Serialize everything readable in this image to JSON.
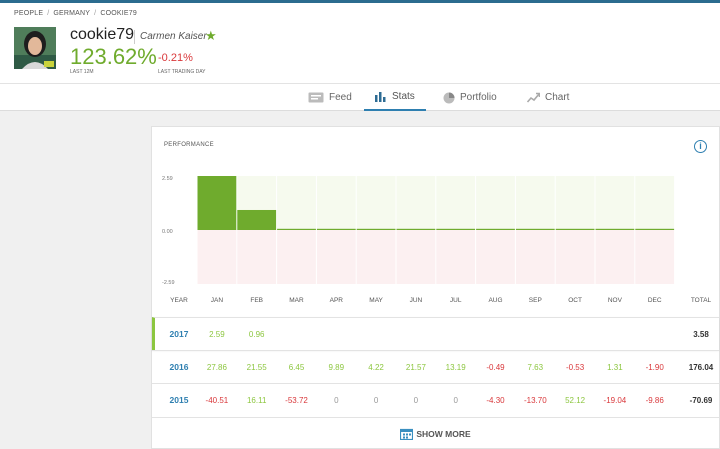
{
  "breadcrumb": [
    "PEOPLE",
    "GERMANY",
    "COOKIE79"
  ],
  "profile": {
    "username": "cookie79",
    "full_name": "Carmen Kaiser",
    "gain": "123.62%",
    "gain_label": "LAST 12M",
    "day_change": "-0.21%",
    "day_label": "LAST TRADING DAY"
  },
  "tabs": [
    {
      "label": "Feed",
      "icon": "feed-icon"
    },
    {
      "label": "Stats",
      "icon": "stats-icon"
    },
    {
      "label": "Portfolio",
      "icon": "portfolio-icon"
    },
    {
      "label": "Chart",
      "icon": "chart-icon"
    }
  ],
  "active_tab": "Stats",
  "performance": {
    "title": "PERFORMANCE",
    "columns": [
      "YEAR",
      "JAN",
      "FEB",
      "MAR",
      "APR",
      "MAY",
      "JUN",
      "JUL",
      "AUG",
      "SEP",
      "OCT",
      "NOV",
      "DEC",
      "TOTAL"
    ],
    "rows": [
      {
        "year": "2017",
        "months": [
          "2.59",
          "0.96",
          "",
          "",
          "",
          "",
          "",
          "",
          "",
          "",
          "",
          ""
        ],
        "total": "3.58"
      },
      {
        "year": "2016",
        "months": [
          "27.86",
          "21.55",
          "6.45",
          "9.89",
          "4.22",
          "21.57",
          "13.19",
          "-0.49",
          "7.63",
          "-0.53",
          "1.31",
          "-1.90"
        ],
        "total": "176.04"
      },
      {
        "year": "2015",
        "months": [
          "-40.51",
          "16.11",
          "-53.72",
          "0",
          "0",
          "0",
          "0",
          "-4.30",
          "-13.70",
          "52.12",
          "-19.04",
          "-9.86"
        ],
        "total": "-70.69"
      }
    ],
    "show_more": "SHOW MORE"
  },
  "chart_data": {
    "type": "bar",
    "categories": [
      "JAN",
      "FEB",
      "MAR",
      "APR",
      "MAY",
      "JUN",
      "JUL",
      "AUG",
      "SEP",
      "OCT",
      "NOV",
      "DEC"
    ],
    "values": [
      2.59,
      0.96,
      0,
      0,
      0,
      0,
      0,
      0,
      0,
      0,
      0,
      0
    ],
    "ylim": [
      -2.59,
      2.59
    ],
    "y_ticks": [
      "2.59",
      "0.00",
      "-2.59"
    ],
    "colors": {
      "bar": "#6fab2d",
      "positive_bg": "#f6faee",
      "negative_bg": "#fcf0f1"
    }
  }
}
